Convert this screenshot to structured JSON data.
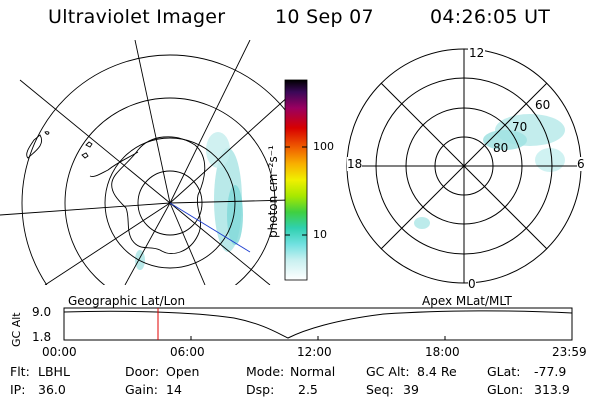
{
  "header": {
    "title": "Ultraviolet Imager",
    "date": "10 Sep 07",
    "time": "04:26:05 UT"
  },
  "colorbar": {
    "label": "photon cm⁻²s⁻¹",
    "ticks": [
      "100",
      "10"
    ],
    "colors": [
      "#000000",
      "#2a0a3a",
      "#6a0080",
      "#a00040",
      "#c80000",
      "#e83000",
      "#f07000",
      "#f8a800",
      "#f8d800",
      "#e8f000",
      "#b0e800",
      "#60d830",
      "#30c870",
      "#40d8c8",
      "#80e8e8",
      "#c8f0f0",
      "#e8f8f8",
      "#ffffff"
    ]
  },
  "polar_plot": {
    "hour_labels": {
      "top": "12",
      "left": "18",
      "right": "6",
      "bottom": "0"
    },
    "lat_labels": [
      "60",
      "70",
      "80"
    ]
  },
  "timeline": {
    "left_label": "Geographic Lat/Lon",
    "right_label": "Apex MLat/MLT",
    "y_label": "GC Alt",
    "y_ticks": [
      "9.0",
      "1.8"
    ],
    "x_ticks": [
      "00:00",
      "06:00",
      "12:00",
      "18:00",
      "23:59"
    ],
    "marker_time_fraction": 0.185
  },
  "status": {
    "flt_label": "Flt:",
    "flt_value": "LBHL",
    "ip_label": "IP:",
    "ip_value": "36.0",
    "door_label": "Door:",
    "door_value": "Open",
    "gain_label": "Gain:",
    "gain_value": "14",
    "mode_label": "Mode:",
    "mode_value": "Normal",
    "dsp_label": "Dsp:",
    "dsp_value": "2.5",
    "gcalt_label": "GC Alt:",
    "gcalt_value": "8.4 Re",
    "seq_label": "Seq:",
    "seq_value": "39",
    "glat_label": "GLat:",
    "glat_value": "-77.9",
    "glon_label": "GLon:",
    "glon_value": "313.9"
  },
  "colors": {
    "aurora": "#9fe0e0",
    "marker": "#e00000",
    "meridian": "#2040d0"
  }
}
